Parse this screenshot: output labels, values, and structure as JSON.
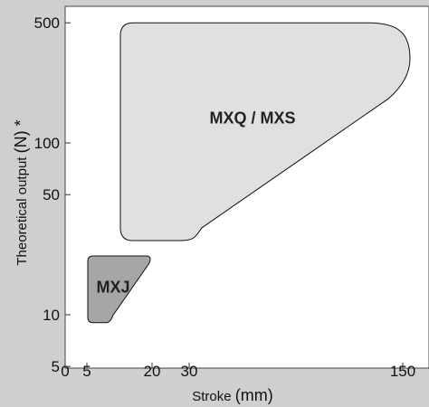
{
  "chart_data": {
    "type": "area",
    "title": "",
    "xlabel": "Stroke (mm)",
    "xlabel_parts": {
      "main": "Stroke ",
      "unit": "(mm)"
    },
    "ylabel": "Theoretical output (N) *",
    "ylabel_parts": {
      "main": "Theoretical output ",
      "unit": "(N)",
      "mark": " *"
    },
    "x_ticks": [
      {
        "value": 0,
        "label": "0"
      },
      {
        "value": 5,
        "label": "5"
      },
      {
        "value": 20,
        "label": "20"
      },
      {
        "value": 30,
        "label": "30"
      },
      {
        "value": 150,
        "label": "150"
      }
    ],
    "y_scale": "log",
    "y_ticks": [
      {
        "value": 5,
        "label": "5"
      },
      {
        "value": 10,
        "label": "10"
      },
      {
        "value": 50,
        "label": "50"
      },
      {
        "value": 100,
        "label": "100"
      },
      {
        "value": 500,
        "label": "500"
      }
    ],
    "series": [
      {
        "name": "MXQ / MXS",
        "color": "#e0e0e0",
        "x_min": 10,
        "x_max": 150,
        "y_min": 27,
        "y_max": 500
      },
      {
        "name": "MXJ",
        "color": "#a6a6a6",
        "x_min": 5,
        "x_max": 20,
        "y_min": 9,
        "y_max": 22
      }
    ],
    "grid": false,
    "colors": {
      "frame": "#cfcfcf",
      "plot_background": "#ffffff",
      "outline": "#111111"
    }
  }
}
